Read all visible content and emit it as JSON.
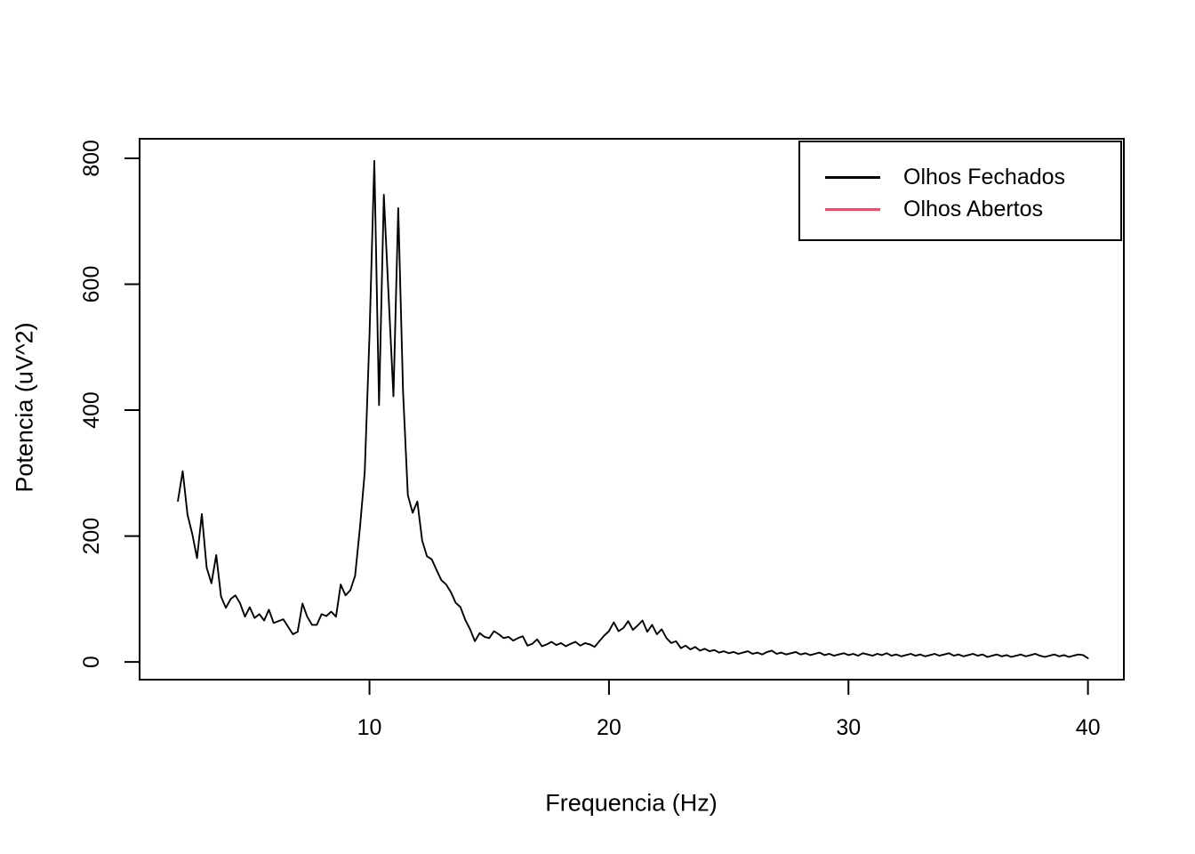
{
  "figure": {
    "background": "#ffffff",
    "line_color": "#000000",
    "accent_red": "#DF536B"
  },
  "axes": {
    "x_title": "Frequencia (Hz)",
    "y_title": "Potencia (uV^2)",
    "x_ticks": [
      10,
      20,
      30,
      40
    ],
    "y_ticks": [
      0,
      200,
      400,
      600,
      800
    ]
  },
  "legend": {
    "position": "topright",
    "entries": [
      {
        "label": "Olhos Fechados",
        "color": "#000000"
      },
      {
        "label": "Olhos Abertos",
        "color": "#DF536B"
      }
    ]
  },
  "chart_data": {
    "type": "line",
    "title": "",
    "xlabel": "Frequencia (Hz)",
    "ylabel": "Potencia (uV^2)",
    "xlim": [
      0.4,
      41.5
    ],
    "ylim": [
      -28,
      831
    ],
    "x_ticks": [
      10,
      20,
      30,
      40
    ],
    "y_ticks": [
      0,
      200,
      400,
      600,
      800
    ],
    "grid": false,
    "legend_position": "topright",
    "series": [
      {
        "name": "Olhos Fechados",
        "color": "#000000",
        "x_start": 2.0,
        "x_step": 0.2,
        "values": [
          256,
          303,
          234,
          203,
          165,
          235,
          150,
          125,
          170,
          104,
          86,
          100,
          106,
          93,
          72,
          87,
          70,
          76,
          66,
          83,
          62,
          65,
          68,
          56,
          44,
          48,
          93,
          72,
          59,
          59,
          76,
          73,
          80,
          72,
          123,
          106,
          114,
          137,
          213,
          301,
          520,
          796,
          408,
          742,
          580,
          422,
          721,
          430,
          265,
          237,
          255,
          193,
          168,
          163,
          146,
          130,
          123,
          111,
          94,
          87,
          67,
          52,
          33,
          46,
          40,
          38,
          49,
          44,
          38,
          40,
          34,
          38,
          41,
          26,
          29,
          36,
          25,
          28,
          32,
          27,
          30,
          25,
          29,
          32,
          26,
          30,
          28,
          24,
          33,
          42,
          49,
          63,
          49,
          54,
          65,
          51,
          58,
          66,
          48,
          59,
          44,
          52,
          38,
          30,
          33,
          22,
          26,
          20,
          24,
          18,
          21,
          17,
          19,
          15,
          17,
          14,
          16,
          13,
          15,
          17,
          13,
          15,
          12,
          16,
          18,
          13,
          15,
          12,
          14,
          16,
          12,
          14,
          11,
          13,
          15,
          11,
          13,
          10,
          12,
          14,
          11,
          13,
          10,
          14,
          12,
          10,
          13,
          11,
          14,
          10,
          12,
          9,
          11,
          13,
          10,
          12,
          9,
          11,
          13,
          10,
          12,
          14,
          10,
          12,
          9,
          11,
          13,
          10,
          12,
          8,
          10,
          12,
          9,
          11,
          8,
          10,
          12,
          9,
          11,
          13,
          10,
          8,
          10,
          12,
          9,
          11,
          8,
          10,
          12,
          11,
          6
        ]
      },
      {
        "name": "Olhos Abertos",
        "color": "#DF536B",
        "values": []
      }
    ]
  }
}
